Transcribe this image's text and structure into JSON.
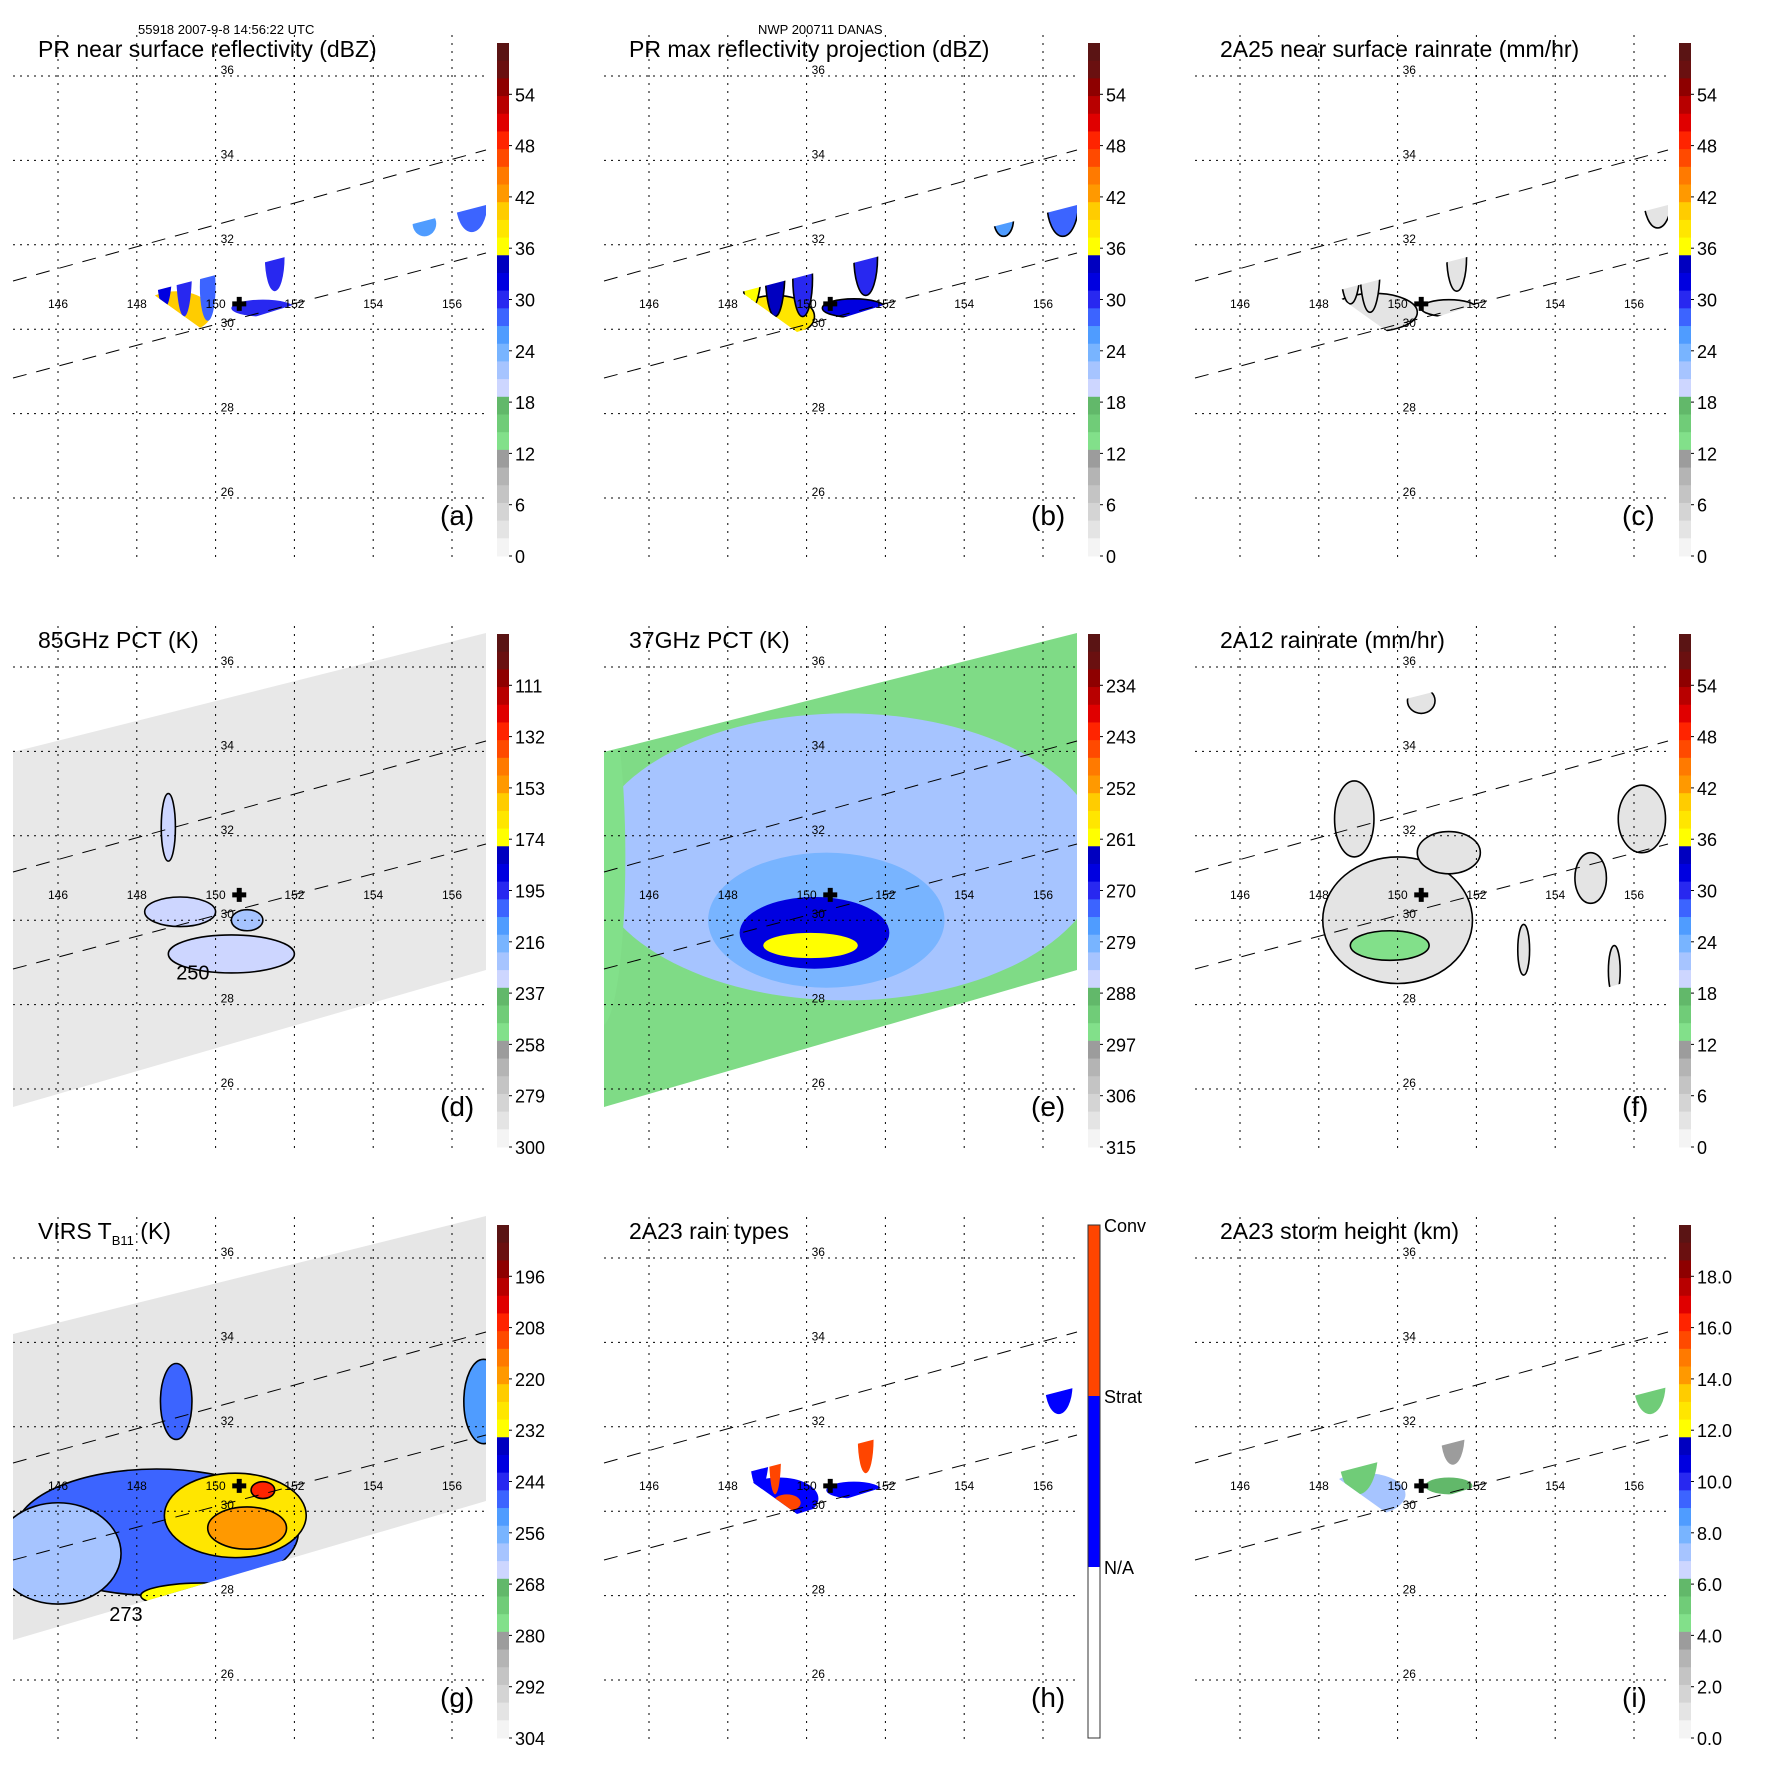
{
  "header": {
    "orbit_time": "55918 2007-9-8 14:56:22 UTC",
    "storm": "NWP 200711 DANAS"
  },
  "map": {
    "lon_ticks": [
      "146",
      "148",
      "150",
      "152",
      "154",
      "156"
    ],
    "lat_ticks": [
      "36",
      "34",
      "32",
      "30",
      "28",
      "26"
    ],
    "storm_center": {
      "lon": 150.6,
      "lat": 30.6
    }
  },
  "colors": {
    "dbz_scale": [
      "#f4f4f4",
      "#e4e4e4",
      "#d4d4d4",
      "#c4c4c4",
      "#b4b4b4",
      "#9c9c9c",
      "#82e08a",
      "#70cc78",
      "#62b86a",
      "#cdd6ff",
      "#a6c4ff",
      "#78b4ff",
      "#4f9cff",
      "#3c64ff",
      "#2828f0",
      "#0000e0",
      "#0000c0",
      "#ffff00",
      "#ffe600",
      "#ffcc00",
      "#ff9900",
      "#ff7a00",
      "#ff4a00",
      "#ff2400",
      "#e00000",
      "#b80000",
      "#8e0000",
      "#6a1010",
      "#5a1414"
    ],
    "conv": "#ff4500",
    "strat": "#0000ff",
    "na": "#ffffff"
  },
  "chart_data": [
    {
      "id": "a",
      "type": "heatmap",
      "title": "PR near surface reflectivity (dBZ)",
      "panel_label": "(a)",
      "colorbar": {
        "ticks": [
          "54",
          "48",
          "42",
          "36",
          "30",
          "24",
          "18",
          "12",
          "6",
          "0"
        ],
        "range": [
          0,
          60
        ]
      },
      "swath": "pr",
      "features": [
        {
          "lon": 149.0,
          "lat": 30.4,
          "rx": 0.9,
          "ry": 0.5,
          "value": 40
        },
        {
          "lon": 148.7,
          "lat": 31.5,
          "rx": 0.2,
          "ry": 1.0,
          "value": 32
        },
        {
          "lon": 149.2,
          "lat": 31.4,
          "rx": 0.2,
          "ry": 1.1,
          "value": 30
        },
        {
          "lon": 149.8,
          "lat": 31.0,
          "rx": 0.2,
          "ry": 0.8,
          "value": 28
        },
        {
          "lon": 151.2,
          "lat": 30.5,
          "rx": 0.8,
          "ry": 0.2,
          "value": 31
        },
        {
          "lon": 151.5,
          "lat": 31.7,
          "rx": 0.25,
          "ry": 0.8,
          "value": 30
        },
        {
          "lon": 156.5,
          "lat": 33.0,
          "rx": 0.4,
          "ry": 0.7,
          "value": 28
        },
        {
          "lon": 155.3,
          "lat": 32.5,
          "rx": 0.3,
          "ry": 0.3,
          "value": 26
        }
      ]
    },
    {
      "id": "b",
      "type": "heatmap",
      "title": "PR max reflectivity projection (dBZ)",
      "panel_label": "(b)",
      "colorbar": {
        "ticks": [
          "54",
          "48",
          "42",
          "36",
          "30",
          "24",
          "18",
          "12",
          "6",
          "0"
        ],
        "range": [
          0,
          60
        ]
      },
      "swath": "pr",
      "contour": true,
      "features": [
        {
          "lon": 149.2,
          "lat": 30.3,
          "rx": 1.0,
          "ry": 0.5,
          "value": 38
        },
        {
          "lon": 148.6,
          "lat": 31.5,
          "rx": 0.25,
          "ry": 1.0,
          "value": 36
        },
        {
          "lon": 149.2,
          "lat": 31.4,
          "rx": 0.25,
          "ry": 1.1,
          "value": 34
        },
        {
          "lon": 149.9,
          "lat": 31.2,
          "rx": 0.25,
          "ry": 0.9,
          "value": 30
        },
        {
          "lon": 151.2,
          "lat": 30.5,
          "rx": 0.8,
          "ry": 0.22,
          "value": 32
        },
        {
          "lon": 151.5,
          "lat": 31.7,
          "rx": 0.3,
          "ry": 0.9,
          "value": 30
        },
        {
          "lon": 156.5,
          "lat": 33.0,
          "rx": 0.4,
          "ry": 0.8,
          "value": 28
        },
        {
          "lon": 155.0,
          "lat": 32.6,
          "rx": 0.25,
          "ry": 0.4,
          "value": 26
        }
      ]
    },
    {
      "id": "c",
      "type": "heatmap",
      "title": "2A25 near surface rainrate (mm/hr)",
      "panel_label": "(c)",
      "colorbar": {
        "ticks": [
          "54",
          "48",
          "42",
          "36",
          "30",
          "24",
          "18",
          "12",
          "6",
          "0"
        ],
        "range": [
          0,
          60
        ]
      },
      "swath": "pr",
      "contour": true,
      "features": [
        {
          "lon": 149.4,
          "lat": 30.4,
          "rx": 1.1,
          "ry": 0.45,
          "value": 3
        },
        {
          "lon": 148.8,
          "lat": 31.5,
          "rx": 0.25,
          "ry": 0.9,
          "value": 3
        },
        {
          "lon": 149.3,
          "lat": 31.4,
          "rx": 0.25,
          "ry": 1.0,
          "value": 3
        },
        {
          "lon": 151.3,
          "lat": 30.5,
          "rx": 0.7,
          "ry": 0.2,
          "value": 3
        },
        {
          "lon": 151.5,
          "lat": 31.7,
          "rx": 0.25,
          "ry": 0.8,
          "value": 3
        },
        {
          "lon": 148.9,
          "lat": 30.2,
          "rx": 0.2,
          "ry": 0.15,
          "value": 20
        },
        {
          "lon": 156.6,
          "lat": 33.1,
          "rx": 0.35,
          "ry": 0.7,
          "value": 3
        }
      ]
    },
    {
      "id": "d",
      "type": "heatmap",
      "title": "85GHz PCT (K)",
      "panel_label": "(d)",
      "colorbar": {
        "ticks": [
          "111",
          "132",
          "153",
          "174",
          "195",
          "216",
          "237",
          "258",
          "279",
          "300"
        ],
        "range": [
          90,
          300
        ]
      },
      "swath": "tmi",
      "background": "#e8e8e8",
      "contour": true,
      "annotation": {
        "text": "250",
        "lon": 149.0,
        "lat": 28.6
      },
      "features": [
        {
          "lon": 150.4,
          "lat": 29.2,
          "rx": 1.6,
          "ry": 0.45,
          "value": 230
        },
        {
          "lon": 149.1,
          "lat": 30.2,
          "rx": 0.9,
          "ry": 0.35,
          "value": 232
        },
        {
          "lon": 150.8,
          "lat": 30.0,
          "rx": 0.4,
          "ry": 0.25,
          "value": 225
        },
        {
          "lon": 148.8,
          "lat": 32.2,
          "rx": 0.18,
          "ry": 0.8,
          "value": 228
        }
      ]
    },
    {
      "id": "e",
      "type": "heatmap",
      "title": "37GHz PCT (K)",
      "panel_label": "(e)",
      "colorbar": {
        "ticks": [
          "234",
          "243",
          "252",
          "261",
          "270",
          "279",
          "288",
          "297",
          "306",
          "315"
        ],
        "range": [
          225,
          315
        ]
      },
      "swath": "tmi",
      "background": "#7fdb86",
      "features": [
        {
          "lon": 151.0,
          "lat": 31.5,
          "rx": 6.5,
          "ry": 3.4,
          "value": 283
        },
        {
          "lon": 150.5,
          "lat": 30.0,
          "rx": 3.0,
          "ry": 1.6,
          "value": 278
        },
        {
          "lon": 150.2,
          "lat": 29.7,
          "rx": 1.9,
          "ry": 0.85,
          "value": 268
        },
        {
          "lon": 150.1,
          "lat": 29.4,
          "rx": 1.2,
          "ry": 0.3,
          "value": 260
        },
        {
          "lon": 144.8,
          "lat": 31.5,
          "rx": 0.6,
          "ry": 4.0,
          "value": 295
        }
      ]
    },
    {
      "id": "f",
      "type": "heatmap",
      "title": "2A12 rainrate (mm/hr)",
      "panel_label": "(f)",
      "colorbar": {
        "ticks": [
          "54",
          "48",
          "42",
          "36",
          "30",
          "24",
          "18",
          "12",
          "6",
          "0"
        ],
        "range": [
          0,
          60
        ]
      },
      "swath": "tmi",
      "contour": true,
      "features": [
        {
          "lon": 150.0,
          "lat": 30.0,
          "rx": 1.9,
          "ry": 1.5,
          "value": 4
        },
        {
          "lon": 149.8,
          "lat": 29.4,
          "rx": 1.0,
          "ry": 0.35,
          "value": 14
        },
        {
          "lon": 148.9,
          "lat": 32.4,
          "rx": 0.5,
          "ry": 0.9,
          "value": 4
        },
        {
          "lon": 151.3,
          "lat": 31.6,
          "rx": 0.8,
          "ry": 0.5,
          "value": 4
        },
        {
          "lon": 156.2,
          "lat": 32.4,
          "rx": 0.6,
          "ry": 0.8,
          "value": 4
        },
        {
          "lon": 154.9,
          "lat": 31.0,
          "rx": 0.4,
          "ry": 0.6,
          "value": 3
        },
        {
          "lon": 153.2,
          "lat": 29.3,
          "rx": 0.15,
          "ry": 0.6,
          "value": 3
        },
        {
          "lon": 155.5,
          "lat": 28.8,
          "rx": 0.15,
          "ry": 0.6,
          "value": 3
        },
        {
          "lon": 150.6,
          "lat": 35.2,
          "rx": 0.35,
          "ry": 0.3,
          "value": 3
        }
      ]
    },
    {
      "id": "g",
      "type": "heatmap",
      "title": "VIRS T",
      "title_sub": "B11",
      "title_suffix": " (K)",
      "panel_label": "(g)",
      "colorbar": {
        "ticks": [
          "196",
          "208",
          "220",
          "232",
          "244",
          "256",
          "268",
          "280",
          "292",
          "304"
        ],
        "range": [
          184,
          304
        ]
      },
      "swath": "virs",
      "background": "#e6e6e6",
      "contour": true,
      "annotation": {
        "text": "273",
        "lon": 147.3,
        "lat": 27.4
      },
      "features": [
        {
          "lon": 148.5,
          "lat": 29.5,
          "rx": 3.6,
          "ry": 1.5,
          "value": 250
        },
        {
          "lon": 146.0,
          "lat": 29.0,
          "rx": 1.6,
          "ry": 1.2,
          "value": 262
        },
        {
          "lon": 150.5,
          "lat": 29.9,
          "rx": 1.8,
          "ry": 1.0,
          "value": 226
        },
        {
          "lon": 150.8,
          "lat": 29.6,
          "rx": 1.0,
          "ry": 0.5,
          "value": 220
        },
        {
          "lon": 151.2,
          "lat": 30.5,
          "rx": 0.3,
          "ry": 0.2,
          "value": 205
        },
        {
          "lon": 149.7,
          "lat": 28.0,
          "rx": 1.6,
          "ry": 0.3,
          "value": 232
        },
        {
          "lon": 149.0,
          "lat": 32.6,
          "rx": 0.4,
          "ry": 0.9,
          "value": 248
        },
        {
          "lon": 156.8,
          "lat": 32.6,
          "rx": 0.5,
          "ry": 1.0,
          "value": 252
        }
      ]
    },
    {
      "id": "h",
      "type": "heatmap",
      "title": "2A23 rain types",
      "panel_label": "(h)",
      "colorbar": {
        "ticks": [
          "Conv",
          "Strat",
          "N/A"
        ],
        "categorical": true
      },
      "swath": "pr",
      "features": [
        {
          "lon": 149.3,
          "lat": 30.3,
          "rx": 1.0,
          "ry": 0.5,
          "value": "strat"
        },
        {
          "lon": 148.8,
          "lat": 31.5,
          "rx": 0.25,
          "ry": 1.0,
          "value": "strat"
        },
        {
          "lon": 149.2,
          "lat": 31.3,
          "rx": 0.15,
          "ry": 0.9,
          "value": "conv"
        },
        {
          "lon": 149.5,
          "lat": 30.2,
          "rx": 0.35,
          "ry": 0.2,
          "value": "conv"
        },
        {
          "lon": 151.2,
          "lat": 30.5,
          "rx": 0.7,
          "ry": 0.2,
          "value": "strat"
        },
        {
          "lon": 151.5,
          "lat": 31.7,
          "rx": 0.2,
          "ry": 0.8,
          "value": "conv"
        },
        {
          "lon": 156.4,
          "lat": 33.0,
          "rx": 0.35,
          "ry": 0.7,
          "value": "strat"
        },
        {
          "lon": 155.5,
          "lat": 32.8,
          "rx": 0.15,
          "ry": 0.1,
          "value": "conv"
        }
      ]
    },
    {
      "id": "i",
      "type": "heatmap",
      "title": "2A23 storm height (km)",
      "panel_label": "(i)",
      "colorbar": {
        "ticks": [
          "18.0",
          "16.0",
          "14.0",
          "12.0",
          "10.0",
          "8.0",
          "6.0",
          "4.0",
          "2.0",
          "0.0"
        ],
        "range": [
          0,
          20
        ]
      },
      "swath": "pr",
      "features": [
        {
          "lon": 149.2,
          "lat": 30.4,
          "rx": 1.0,
          "ry": 0.5,
          "value": 7.5
        },
        {
          "lon": 149.0,
          "lat": 31.4,
          "rx": 0.5,
          "ry": 1.0,
          "value": 5.5
        },
        {
          "lon": 151.3,
          "lat": 30.6,
          "rx": 0.6,
          "ry": 0.2,
          "value": 6.0
        },
        {
          "lon": 151.4,
          "lat": 31.8,
          "rx": 0.3,
          "ry": 0.7,
          "value": 4.0
        },
        {
          "lon": 156.4,
          "lat": 33.0,
          "rx": 0.4,
          "ry": 0.7,
          "value": 5.0
        }
      ]
    }
  ]
}
